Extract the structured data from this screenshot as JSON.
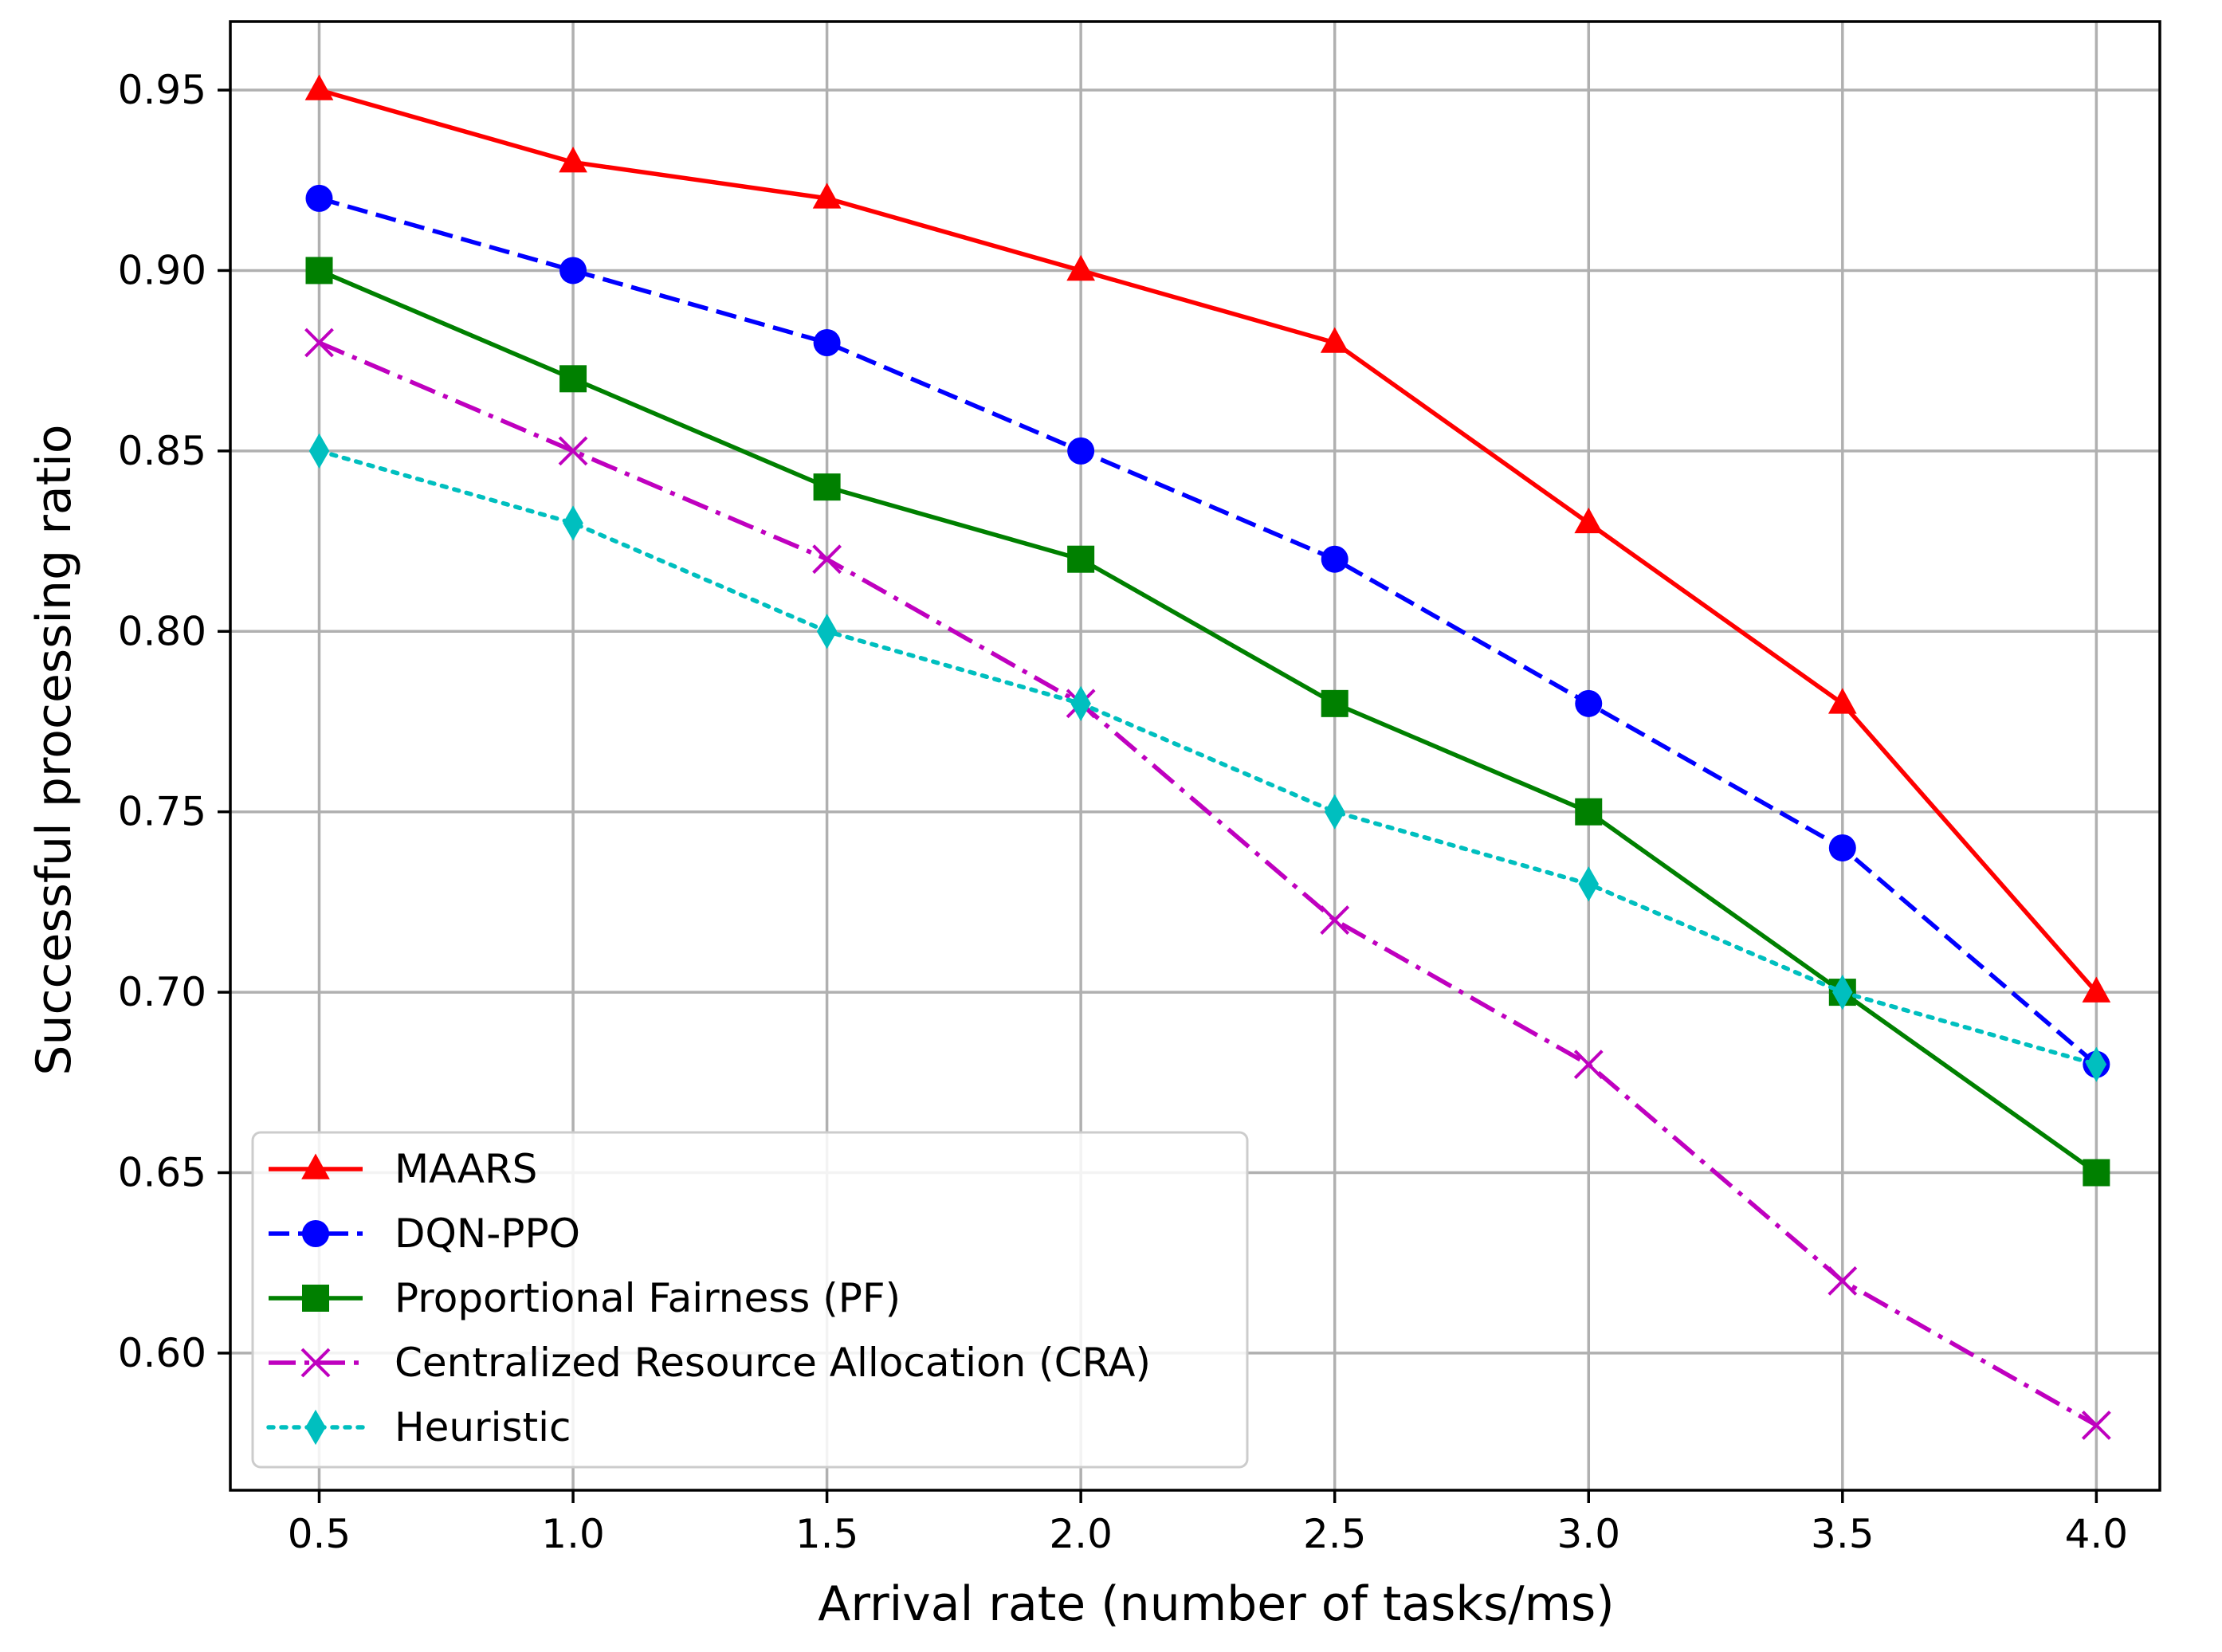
{
  "chart_data": {
    "type": "line",
    "title": "",
    "xlabel": "Arrival rate (number of tasks/ms)",
    "ylabel": "Successful processing ratio",
    "x": [
      0.5,
      1.0,
      1.5,
      2.0,
      2.5,
      3.0,
      3.5,
      4.0
    ],
    "x_tick_labels": [
      "0.5",
      "1.0",
      "1.5",
      "2.0",
      "2.5",
      "3.0",
      "3.5",
      "4.0"
    ],
    "y_tick_values": [
      0.6,
      0.65,
      0.7,
      0.75,
      0.8,
      0.85,
      0.9,
      0.95
    ],
    "y_tick_labels": [
      "0.60",
      "0.65",
      "0.70",
      "0.75",
      "0.80",
      "0.85",
      "0.90",
      "0.95"
    ],
    "xlim": [
      0.325,
      4.125
    ],
    "ylim": [
      0.562,
      0.969
    ],
    "grid": true,
    "legend_position": "bottom-left",
    "series": [
      {
        "name": "MAARS",
        "color": "#ff0000",
        "linestyle": "solid",
        "marker": "triangle",
        "values": [
          0.95,
          0.93,
          0.92,
          0.9,
          0.88,
          0.83,
          0.78,
          0.7
        ]
      },
      {
        "name": "DQN-PPO",
        "color": "#0000ff",
        "linestyle": "dashed",
        "marker": "circle",
        "values": [
          0.92,
          0.9,
          0.88,
          0.85,
          0.82,
          0.78,
          0.74,
          0.68
        ]
      },
      {
        "name": "Proportional Fairness (PF)",
        "color": "#008000",
        "linestyle": "solid",
        "marker": "square",
        "values": [
          0.9,
          0.87,
          0.84,
          0.82,
          0.78,
          0.75,
          0.7,
          0.65
        ]
      },
      {
        "name": "Centralized Resource Allocation (CRA)",
        "color": "#bf00bf",
        "linestyle": "dashdot",
        "marker": "x",
        "values": [
          0.88,
          0.85,
          0.82,
          0.78,
          0.72,
          0.68,
          0.62,
          0.58
        ]
      },
      {
        "name": "Heuristic",
        "color": "#00bfbf",
        "linestyle": "dotted",
        "marker": "diamond",
        "values": [
          0.85,
          0.83,
          0.8,
          0.78,
          0.75,
          0.73,
          0.7,
          0.68
        ]
      }
    ]
  }
}
